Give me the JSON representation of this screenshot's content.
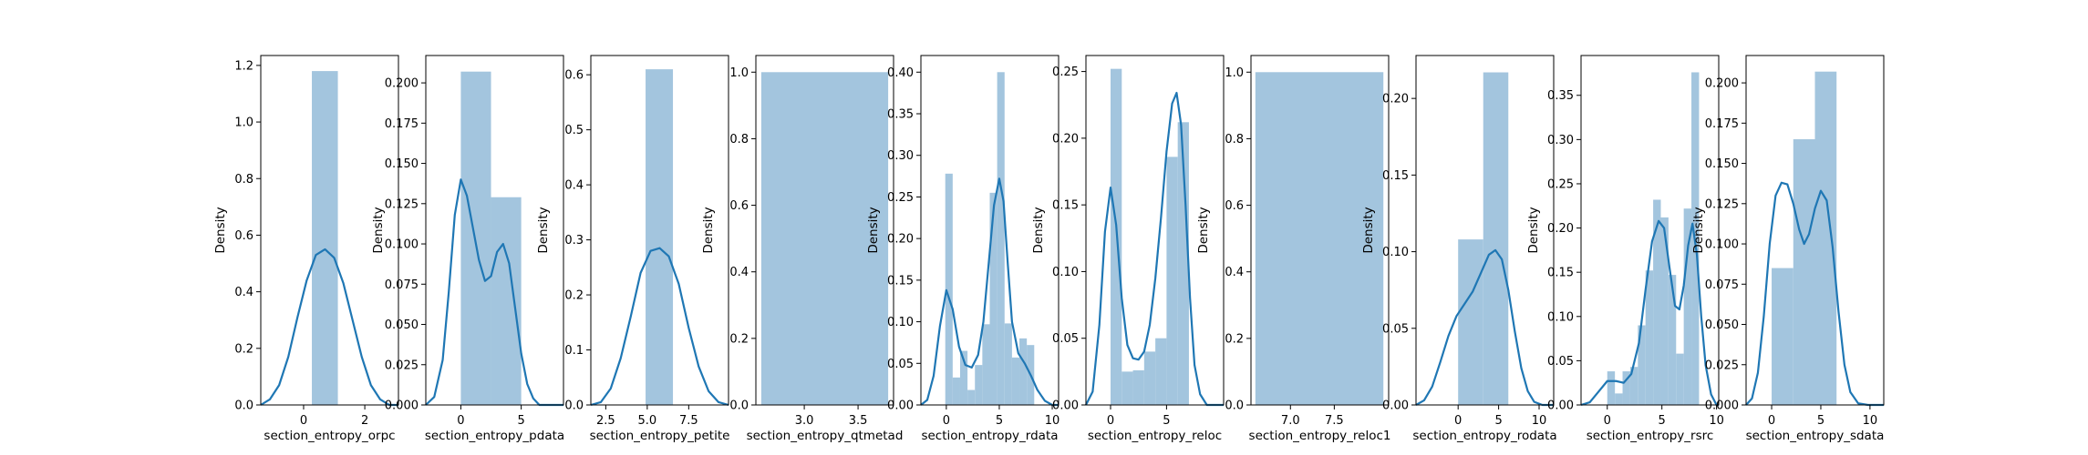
{
  "colors": {
    "bar": "#a3c5de",
    "kde": "#1f77b4",
    "axis": "#000000",
    "background": "#ffffff"
  },
  "chart_data": [
    {
      "type": "bar",
      "xlabel": "section_entropy_orpc",
      "ylabel": "Density",
      "xlim": [
        -1.4,
        3.1
      ],
      "ylim": [
        0,
        1.235
      ],
      "xticks": [
        0,
        2
      ],
      "yticks": [
        0.0,
        0.2,
        0.4,
        0.6,
        0.8,
        1.0,
        1.2
      ],
      "ytick_labels": [
        "0.0",
        "0.2",
        "0.4",
        "0.6",
        "0.8",
        "1.0",
        "1.2"
      ],
      "bins": [
        [
          0.27,
          1.12,
          1.18
        ]
      ],
      "kde": [
        [
          -1.4,
          0.0
        ],
        [
          -1.1,
          0.02
        ],
        [
          -0.8,
          0.07
        ],
        [
          -0.5,
          0.17
        ],
        [
          -0.2,
          0.31
        ],
        [
          0.1,
          0.44
        ],
        [
          0.4,
          0.53
        ],
        [
          0.7,
          0.55
        ],
        [
          1.0,
          0.52
        ],
        [
          1.3,
          0.43
        ],
        [
          1.6,
          0.3
        ],
        [
          1.9,
          0.17
        ],
        [
          2.2,
          0.07
        ],
        [
          2.5,
          0.02
        ],
        [
          2.8,
          0.0
        ],
        [
          3.1,
          0.0
        ]
      ]
    },
    {
      "type": "bar",
      "xlabel": "section_entropy_pdata",
      "ylabel": "Density",
      "xlim": [
        -2.9,
        8.5
      ],
      "ylim": [
        0,
        0.217
      ],
      "xticks": [
        0,
        5
      ],
      "yticks": [
        0.0,
        0.025,
        0.05,
        0.075,
        0.1,
        0.125,
        0.15,
        0.175,
        0.2
      ],
      "ytick_labels": [
        "0.000",
        "0.025",
        "0.050",
        "0.075",
        "0.100",
        "0.125",
        "0.150",
        "0.175",
        "0.200"
      ],
      "bins": [
        [
          0.0,
          2.5,
          0.207
        ],
        [
          2.5,
          5.0,
          0.129
        ]
      ],
      "kde": [
        [
          -2.9,
          0.0
        ],
        [
          -2.2,
          0.005
        ],
        [
          -1.5,
          0.028
        ],
        [
          -1.0,
          0.07
        ],
        [
          -0.5,
          0.118
        ],
        [
          0.0,
          0.14
        ],
        [
          0.5,
          0.13
        ],
        [
          1.0,
          0.11
        ],
        [
          1.5,
          0.09
        ],
        [
          2.0,
          0.077
        ],
        [
          2.5,
          0.08
        ],
        [
          3.0,
          0.095
        ],
        [
          3.5,
          0.1
        ],
        [
          4.0,
          0.088
        ],
        [
          4.5,
          0.06
        ],
        [
          5.0,
          0.032
        ],
        [
          5.5,
          0.013
        ],
        [
          6.0,
          0.004
        ],
        [
          6.5,
          0.0
        ],
        [
          8.5,
          0.0
        ]
      ]
    },
    {
      "type": "bar",
      "xlabel": "section_entropy_petite",
      "ylabel": "Density",
      "xlim": [
        1.6,
        9.9
      ],
      "ylim": [
        0,
        0.635
      ],
      "xticks": [
        2.5,
        5.0,
        7.5
      ],
      "yticks": [
        0.0,
        0.1,
        0.2,
        0.3,
        0.4,
        0.5,
        0.6
      ],
      "xtick_labels": [
        "2.5",
        "5.0",
        "7.5"
      ],
      "ytick_labels": [
        "0.0",
        "0.1",
        "0.2",
        "0.3",
        "0.4",
        "0.5",
        "0.6"
      ],
      "bins": [
        [
          4.9,
          6.55,
          0.61
        ]
      ],
      "kde": [
        [
          1.6,
          0.0
        ],
        [
          2.2,
          0.005
        ],
        [
          2.8,
          0.03
        ],
        [
          3.4,
          0.085
        ],
        [
          4.0,
          0.16
        ],
        [
          4.6,
          0.24
        ],
        [
          5.2,
          0.28
        ],
        [
          5.75,
          0.285
        ],
        [
          6.3,
          0.27
        ],
        [
          6.9,
          0.22
        ],
        [
          7.5,
          0.14
        ],
        [
          8.1,
          0.07
        ],
        [
          8.7,
          0.025
        ],
        [
          9.3,
          0.005
        ],
        [
          9.9,
          0.0
        ]
      ]
    },
    {
      "type": "bar",
      "xlabel": "section_entropy_qtmetad",
      "ylabel": "Density",
      "xlim": [
        2.55,
        3.83
      ],
      "ylim": [
        0,
        1.05
      ],
      "xticks": [
        3.0,
        3.5
      ],
      "yticks": [
        0.0,
        0.2,
        0.4,
        0.6,
        0.8,
        1.0
      ],
      "xtick_labels": [
        "3.0",
        "3.5"
      ],
      "ytick_labels": [
        "0.0",
        "0.2",
        "0.4",
        "0.6",
        "0.8",
        "1.0"
      ],
      "bins": [
        [
          2.6,
          3.78,
          1.0
        ]
      ],
      "kde": []
    },
    {
      "type": "bar",
      "xlabel": "section_entropy_rdata",
      "ylabel": "Density",
      "xlim": [
        -2.4,
        10.6
      ],
      "ylim": [
        0,
        0.42
      ],
      "xticks": [
        0,
        5,
        10
      ],
      "yticks": [
        0.0,
        0.05,
        0.1,
        0.15,
        0.2,
        0.25,
        0.3,
        0.35,
        0.4
      ],
      "ytick_labels": [
        "0.00",
        "0.05",
        "0.10",
        "0.15",
        "0.20",
        "0.25",
        "0.30",
        "0.35",
        "0.40"
      ],
      "bins": [
        [
          -0.1,
          0.6,
          0.278
        ],
        [
          0.6,
          1.3,
          0.033
        ],
        [
          1.3,
          2.0,
          0.065
        ],
        [
          2.0,
          2.7,
          0.018
        ],
        [
          2.7,
          3.4,
          0.048
        ],
        [
          3.4,
          4.1,
          0.097
        ],
        [
          4.1,
          4.8,
          0.255
        ],
        [
          4.8,
          5.5,
          0.4
        ],
        [
          5.5,
          6.2,
          0.098
        ],
        [
          6.2,
          6.9,
          0.057
        ],
        [
          6.9,
          7.6,
          0.08
        ],
        [
          7.6,
          8.3,
          0.072
        ]
      ],
      "kde": [
        [
          -2.4,
          0.0
        ],
        [
          -1.8,
          0.006
        ],
        [
          -1.2,
          0.035
        ],
        [
          -0.6,
          0.095
        ],
        [
          0.0,
          0.138
        ],
        [
          0.6,
          0.115
        ],
        [
          1.2,
          0.07
        ],
        [
          1.8,
          0.048
        ],
        [
          2.4,
          0.045
        ],
        [
          3.0,
          0.06
        ],
        [
          3.5,
          0.1
        ],
        [
          4.0,
          0.17
        ],
        [
          4.5,
          0.24
        ],
        [
          5.0,
          0.272
        ],
        [
          5.4,
          0.245
        ],
        [
          5.8,
          0.17
        ],
        [
          6.2,
          0.1
        ],
        [
          6.8,
          0.062
        ],
        [
          7.4,
          0.05
        ],
        [
          8.0,
          0.035
        ],
        [
          8.6,
          0.018
        ],
        [
          9.3,
          0.005
        ],
        [
          10.0,
          0.0
        ],
        [
          10.6,
          0.0
        ]
      ]
    },
    {
      "type": "bar",
      "xlabel": "section_entropy_reloc",
      "ylabel": "Density",
      "xlim": [
        -2.2,
        10.1
      ],
      "ylim": [
        0,
        0.262
      ],
      "xticks": [
        0,
        5
      ],
      "yticks": [
        0.0,
        0.05,
        0.1,
        0.15,
        0.2,
        0.25
      ],
      "ytick_labels": [
        "0.00",
        "0.05",
        "0.10",
        "0.15",
        "0.20",
        "0.25"
      ],
      "bins": [
        [
          0.0,
          1.0,
          0.252
        ],
        [
          1.0,
          2.0,
          0.025
        ],
        [
          2.0,
          3.0,
          0.026
        ],
        [
          3.0,
          4.0,
          0.04
        ],
        [
          4.0,
          5.0,
          0.05
        ],
        [
          5.0,
          6.0,
          0.186
        ],
        [
          6.0,
          7.0,
          0.212
        ]
      ],
      "kde": [
        [
          -2.2,
          0.0
        ],
        [
          -1.6,
          0.01
        ],
        [
          -1.0,
          0.06
        ],
        [
          -0.5,
          0.13
        ],
        [
          0.0,
          0.163
        ],
        [
          0.5,
          0.135
        ],
        [
          1.0,
          0.08
        ],
        [
          1.5,
          0.045
        ],
        [
          2.0,
          0.035
        ],
        [
          2.5,
          0.034
        ],
        [
          3.0,
          0.04
        ],
        [
          3.5,
          0.06
        ],
        [
          4.0,
          0.095
        ],
        [
          4.5,
          0.14
        ],
        [
          5.0,
          0.19
        ],
        [
          5.5,
          0.226
        ],
        [
          5.9,
          0.234
        ],
        [
          6.3,
          0.21
        ],
        [
          6.7,
          0.15
        ],
        [
          7.1,
          0.08
        ],
        [
          7.5,
          0.03
        ],
        [
          8.0,
          0.008
        ],
        [
          8.6,
          0.0
        ],
        [
          10.1,
          0.0
        ]
      ]
    },
    {
      "type": "bar",
      "xlabel": "section_entropy_reloc1",
      "ylabel": "Density",
      "xlim": [
        6.55,
        8.12
      ],
      "ylim": [
        0,
        1.05
      ],
      "xticks": [
        7.0,
        7.5
      ],
      "yticks": [
        0.0,
        0.2,
        0.4,
        0.6,
        0.8,
        1.0
      ],
      "xtick_labels": [
        "7.0",
        "7.5"
      ],
      "ytick_labels": [
        "0.0",
        "0.2",
        "0.4",
        "0.6",
        "0.8",
        "1.0"
      ],
      "bins": [
        [
          6.6,
          8.06,
          1.0
        ]
      ],
      "kde": []
    },
    {
      "type": "bar",
      "xlabel": "section_entropy_rodata",
      "ylabel": "Density",
      "xlim": [
        -5.2,
        11.8
      ],
      "ylim": [
        0,
        0.228
      ],
      "xticks": [
        0,
        5,
        10
      ],
      "yticks": [
        0.0,
        0.05,
        0.1,
        0.15,
        0.2
      ],
      "ytick_labels": [
        "0.00",
        "0.05",
        "0.10",
        "0.15",
        "0.20"
      ],
      "bins": [
        [
          0.0,
          3.1,
          0.108
        ],
        [
          3.1,
          6.2,
          0.217
        ]
      ],
      "kde": [
        [
          -5.2,
          0.0
        ],
        [
          -4.2,
          0.003
        ],
        [
          -3.2,
          0.012
        ],
        [
          -2.2,
          0.028
        ],
        [
          -1.2,
          0.045
        ],
        [
          -0.2,
          0.058
        ],
        [
          0.8,
          0.066
        ],
        [
          1.8,
          0.074
        ],
        [
          2.8,
          0.086
        ],
        [
          3.8,
          0.098
        ],
        [
          4.6,
          0.101
        ],
        [
          5.4,
          0.095
        ],
        [
          6.2,
          0.075
        ],
        [
          7.0,
          0.048
        ],
        [
          7.8,
          0.024
        ],
        [
          8.6,
          0.009
        ],
        [
          9.4,
          0.002
        ],
        [
          10.4,
          0.0
        ],
        [
          11.8,
          0.0
        ]
      ]
    },
    {
      "type": "bar",
      "xlabel": "section_entropy_rsrc",
      "ylabel": "Density",
      "xlim": [
        -2.4,
        10.2
      ],
      "ylim": [
        0,
        0.395
      ],
      "xticks": [
        0,
        5,
        10
      ],
      "yticks": [
        0.0,
        0.05,
        0.1,
        0.15,
        0.2,
        0.25,
        0.3,
        0.35
      ],
      "ytick_labels": [
        "0.00",
        "0.05",
        "0.10",
        "0.15",
        "0.20",
        "0.25",
        "0.30",
        "0.35"
      ],
      "bins": [
        [
          0.0,
          0.7,
          0.038
        ],
        [
          0.7,
          1.4,
          0.013
        ],
        [
          1.4,
          2.1,
          0.038
        ],
        [
          2.1,
          2.8,
          0.043
        ],
        [
          2.8,
          3.5,
          0.09
        ],
        [
          3.5,
          4.2,
          0.152
        ],
        [
          4.2,
          4.9,
          0.232
        ],
        [
          4.9,
          5.6,
          0.212
        ],
        [
          5.6,
          6.3,
          0.147
        ],
        [
          6.3,
          7.0,
          0.058
        ],
        [
          7.0,
          7.7,
          0.222
        ],
        [
          7.7,
          8.4,
          0.376
        ]
      ],
      "kde": [
        [
          -2.4,
          0.0
        ],
        [
          -1.6,
          0.003
        ],
        [
          -0.8,
          0.015
        ],
        [
          0.0,
          0.027
        ],
        [
          0.8,
          0.027
        ],
        [
          1.5,
          0.025
        ],
        [
          2.2,
          0.035
        ],
        [
          2.9,
          0.07
        ],
        [
          3.5,
          0.13
        ],
        [
          4.1,
          0.185
        ],
        [
          4.7,
          0.208
        ],
        [
          5.2,
          0.2
        ],
        [
          5.7,
          0.155
        ],
        [
          6.2,
          0.112
        ],
        [
          6.6,
          0.108
        ],
        [
          7.0,
          0.135
        ],
        [
          7.4,
          0.18
        ],
        [
          7.8,
          0.205
        ],
        [
          8.2,
          0.17
        ],
        [
          8.6,
          0.1
        ],
        [
          9.0,
          0.045
        ],
        [
          9.5,
          0.012
        ],
        [
          10.0,
          0.0
        ],
        [
          10.2,
          0.0
        ]
      ]
    },
    {
      "type": "bar",
      "xlabel": "section_entropy_sdata",
      "ylabel": "Density",
      "xlim": [
        -2.6,
        11.4
      ],
      "ylim": [
        0,
        0.217
      ],
      "xticks": [
        0,
        5,
        10
      ],
      "yticks": [
        0.0,
        0.025,
        0.05,
        0.075,
        0.1,
        0.125,
        0.15,
        0.175,
        0.2
      ],
      "ytick_labels": [
        "0.000",
        "0.025",
        "0.050",
        "0.075",
        "0.100",
        "0.125",
        "0.150",
        "0.175",
        "0.200"
      ],
      "bins": [
        [
          0.0,
          2.2,
          0.085
        ],
        [
          2.2,
          4.4,
          0.165
        ],
        [
          4.4,
          6.6,
          0.207
        ]
      ],
      "kde": [
        [
          -2.6,
          0.0
        ],
        [
          -2.0,
          0.004
        ],
        [
          -1.4,
          0.02
        ],
        [
          -0.8,
          0.055
        ],
        [
          -0.2,
          0.1
        ],
        [
          0.4,
          0.13
        ],
        [
          1.0,
          0.138
        ],
        [
          1.6,
          0.137
        ],
        [
          2.2,
          0.125
        ],
        [
          2.8,
          0.109
        ],
        [
          3.3,
          0.1
        ],
        [
          3.8,
          0.106
        ],
        [
          4.4,
          0.122
        ],
        [
          5.0,
          0.133
        ],
        [
          5.6,
          0.127
        ],
        [
          6.2,
          0.098
        ],
        [
          6.8,
          0.058
        ],
        [
          7.4,
          0.025
        ],
        [
          8.0,
          0.008
        ],
        [
          8.8,
          0.001
        ],
        [
          9.8,
          0.0
        ],
        [
          11.4,
          0.0
        ]
      ]
    }
  ]
}
